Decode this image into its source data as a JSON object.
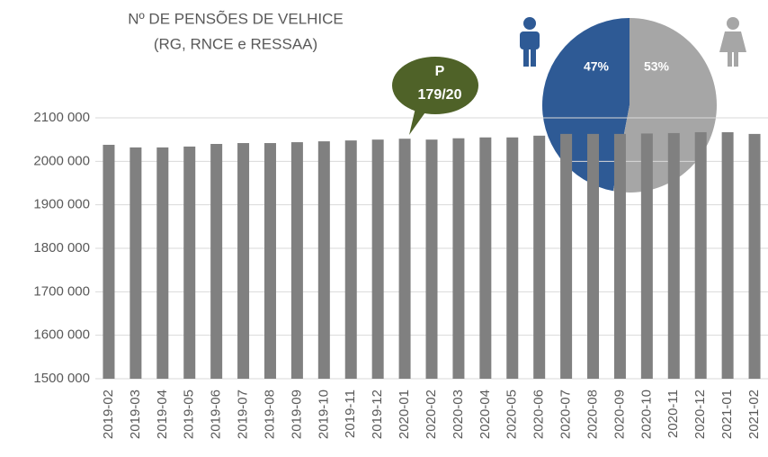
{
  "chart_data": [
    {
      "type": "bar",
      "title": "Nº DE PENSÕES DE VELHICE",
      "subtitle": "(RG, RNCE e RESSAA)",
      "annotation": [
        "P",
        "179/20"
      ],
      "categories": [
        "2019-02",
        "2019-03",
        "2019-04",
        "2019-05",
        "2019-06",
        "2019-07",
        "2019-08",
        "2019-09",
        "2019-10",
        "2019-11",
        "2019-12",
        "2020-01",
        "2020-02",
        "2020-03",
        "2020-04",
        "2020-05",
        "2020-06",
        "2020-07",
        "2020-08",
        "2020-09",
        "2020-10",
        "2020-11",
        "2020-12",
        "2021-01",
        "2021-02"
      ],
      "values": [
        2038000,
        2032000,
        2032000,
        2034000,
        2040000,
        2042000,
        2042000,
        2044000,
        2046000,
        2048000,
        2050000,
        2052000,
        2050000,
        2053000,
        2055000,
        2055000,
        2059000,
        2063000,
        2063000,
        2063000,
        2064000,
        2065000,
        2067000,
        2067000,
        2063000
      ],
      "color": "#808080",
      "ylim": [
        1500000,
        2100000
      ],
      "yticks": [
        {
          "value": 1500000,
          "label": "1500 000"
        },
        {
          "value": 1600000,
          "label": "1600 000"
        },
        {
          "value": 1700000,
          "label": "1700 000"
        },
        {
          "value": 1800000,
          "label": "1800 000"
        },
        {
          "value": 1900000,
          "label": "1900 000"
        },
        {
          "value": 2000000,
          "label": "2000 000"
        },
        {
          "value": 2100000,
          "label": "2100 000"
        }
      ],
      "grid": true
    },
    {
      "type": "pie",
      "values": [
        47,
        53
      ],
      "value_labels": [
        "47%",
        "53%"
      ],
      "colors": [
        "#2e5a95",
        "#a6a6a6"
      ]
    }
  ]
}
